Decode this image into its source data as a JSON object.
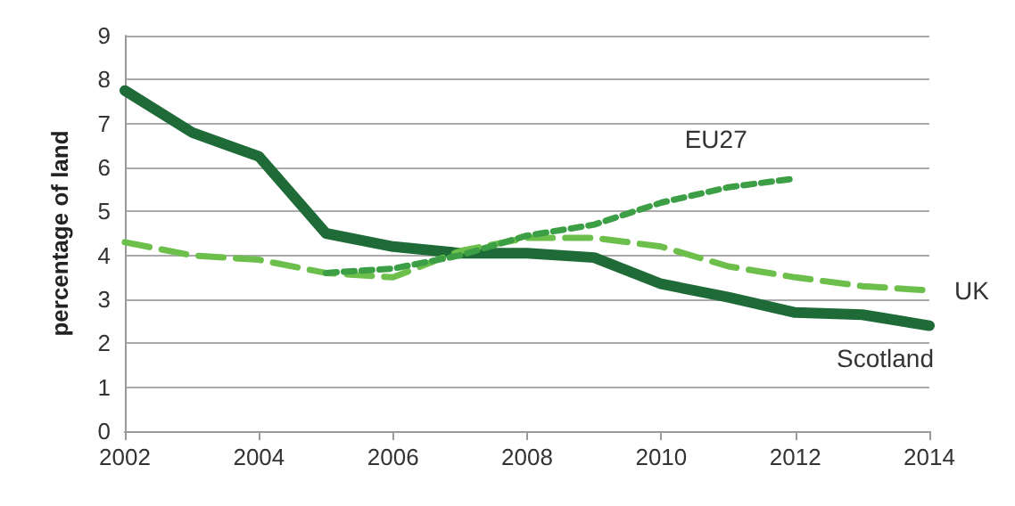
{
  "chart_data": {
    "type": "line",
    "ylabel": "percentage of land",
    "x": [
      2002,
      2003,
      2004,
      2005,
      2006,
      2007,
      2008,
      2009,
      2010,
      2011,
      2012,
      2013,
      2014
    ],
    "xlim": [
      2002,
      2014
    ],
    "xticks": [
      2002,
      2004,
      2006,
      2008,
      2010,
      2012,
      2014
    ],
    "ylim": [
      0,
      9
    ],
    "yticks": [
      0,
      1,
      2,
      3,
      4,
      5,
      6,
      7,
      8,
      9
    ],
    "grid": "y",
    "legend": false,
    "marker": "none",
    "series": [
      {
        "name": "Scotland",
        "color": "#1e6b37",
        "line_style": "solid",
        "values": [
          7.75,
          6.8,
          6.25,
          4.5,
          4.2,
          4.05,
          4.05,
          3.95,
          3.35,
          3.05,
          2.7,
          2.65,
          2.4
        ]
      },
      {
        "name": "UK",
        "color": "#6cbf4a",
        "line_style": "dashed",
        "values": [
          4.3,
          4.0,
          3.9,
          3.6,
          3.5,
          4.1,
          4.4,
          4.4,
          4.2,
          3.75,
          3.5,
          3.3,
          3.2
        ]
      },
      {
        "name": "EU27",
        "color": "#3c9f46",
        "line_style": "dotted",
        "values": [
          null,
          null,
          null,
          3.6,
          3.7,
          4.0,
          4.45,
          4.7,
          5.2,
          5.55,
          5.75,
          null,
          null
        ]
      }
    ]
  }
}
